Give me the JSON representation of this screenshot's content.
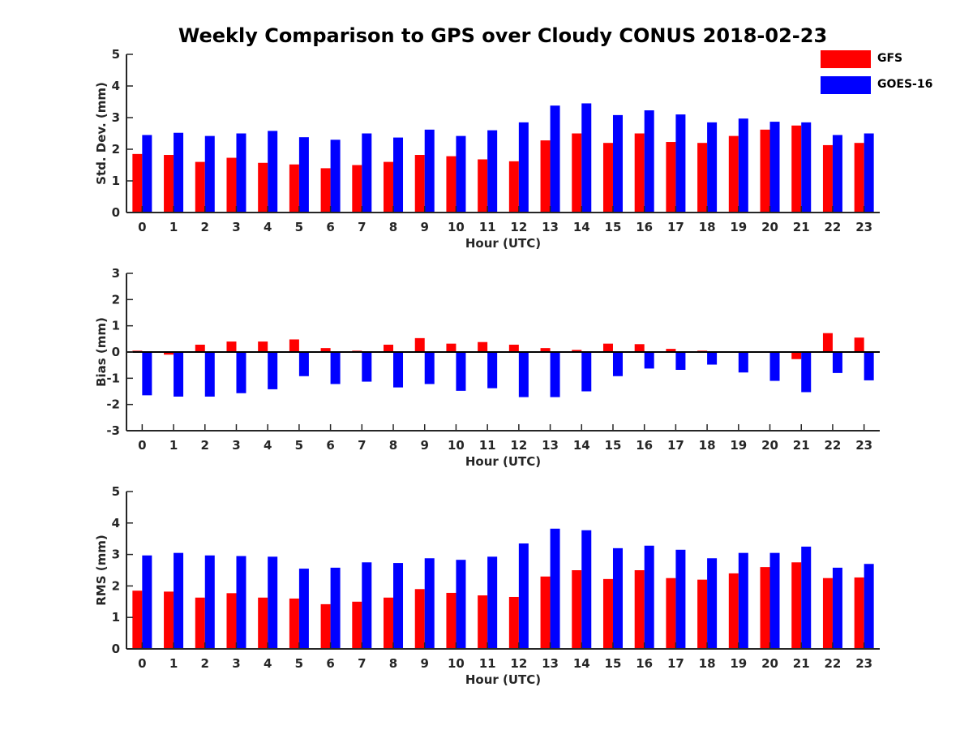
{
  "title": "Weekly Comparison to GPS over Cloudy CONUS 2018-02-23",
  "legend": {
    "placement": "top-right",
    "items": [
      {
        "label": "GFS",
        "color": "#ff0000"
      },
      {
        "label": "GOES-16",
        "color": "#0000ff"
      }
    ]
  },
  "chart_data": [
    {
      "type": "bar",
      "xlabel": "Hour (UTC)",
      "ylabel": "Std. Dev. (mm)",
      "ylim": [
        0,
        5
      ],
      "yticks": [
        0,
        1,
        2,
        3,
        4,
        5
      ],
      "categories": [
        "0",
        "1",
        "2",
        "3",
        "4",
        "5",
        "6",
        "7",
        "8",
        "9",
        "10",
        "11",
        "12",
        "13",
        "14",
        "15",
        "16",
        "17",
        "18",
        "19",
        "20",
        "21",
        "22",
        "23"
      ],
      "series": [
        {
          "name": "GFS",
          "color": "#ff0000",
          "values": [
            1.85,
            1.82,
            1.6,
            1.73,
            1.57,
            1.52,
            1.4,
            1.5,
            1.6,
            1.82,
            1.78,
            1.68,
            1.62,
            2.28,
            2.5,
            2.2,
            2.5,
            2.23,
            2.2,
            2.42,
            2.62,
            2.75,
            2.13,
            2.2
          ]
        },
        {
          "name": "GOES-16",
          "color": "#0000ff",
          "values": [
            2.45,
            2.52,
            2.42,
            2.5,
            2.58,
            2.38,
            2.3,
            2.5,
            2.37,
            2.62,
            2.42,
            2.6,
            2.85,
            3.38,
            3.45,
            3.08,
            3.23,
            3.1,
            2.85,
            2.97,
            2.87,
            2.85,
            2.45,
            2.5
          ]
        }
      ],
      "grid": false
    },
    {
      "type": "bar",
      "xlabel": "Hour (UTC)",
      "ylabel": "Bias (mm)",
      "ylim": [
        -3,
        3
      ],
      "yticks": [
        -3,
        -2,
        -1,
        0,
        1,
        2,
        3
      ],
      "categories": [
        "0",
        "1",
        "2",
        "3",
        "4",
        "5",
        "6",
        "7",
        "8",
        "9",
        "10",
        "11",
        "12",
        "13",
        "14",
        "15",
        "16",
        "17",
        "18",
        "19",
        "20",
        "21",
        "22",
        "23"
      ],
      "series": [
        {
          "name": "GFS",
          "color": "#ff0000",
          "values": [
            0.05,
            -0.1,
            0.28,
            0.4,
            0.4,
            0.48,
            0.15,
            0.05,
            0.28,
            0.53,
            0.32,
            0.38,
            0.28,
            0.15,
            0.08,
            0.32,
            0.3,
            0.12,
            0.05,
            0.0,
            0.03,
            -0.27,
            0.72,
            0.55
          ]
        },
        {
          "name": "GOES-16",
          "color": "#0000ff",
          "values": [
            -1.65,
            -1.7,
            -1.7,
            -1.57,
            -1.42,
            -0.92,
            -1.22,
            -1.13,
            -1.35,
            -1.22,
            -1.48,
            -1.38,
            -1.72,
            -1.72,
            -1.5,
            -0.92,
            -0.63,
            -0.68,
            -0.48,
            -0.78,
            -1.1,
            -1.53,
            -0.8,
            -1.08
          ]
        }
      ],
      "grid": false
    },
    {
      "type": "bar",
      "xlabel": "Hour (UTC)",
      "ylabel": "RMS (mm)",
      "ylim": [
        0,
        5
      ],
      "yticks": [
        0,
        1,
        2,
        3,
        4,
        5
      ],
      "categories": [
        "0",
        "1",
        "2",
        "3",
        "4",
        "5",
        "6",
        "7",
        "8",
        "9",
        "10",
        "11",
        "12",
        "13",
        "14",
        "15",
        "16",
        "17",
        "18",
        "19",
        "20",
        "21",
        "22",
        "23"
      ],
      "series": [
        {
          "name": "GFS",
          "color": "#ff0000",
          "values": [
            1.85,
            1.82,
            1.63,
            1.77,
            1.63,
            1.6,
            1.42,
            1.5,
            1.63,
            1.9,
            1.78,
            1.7,
            1.65,
            2.3,
            2.5,
            2.22,
            2.5,
            2.25,
            2.2,
            2.4,
            2.6,
            2.75,
            2.25,
            2.27
          ]
        },
        {
          "name": "GOES-16",
          "color": "#0000ff",
          "values": [
            2.97,
            3.05,
            2.97,
            2.95,
            2.93,
            2.55,
            2.58,
            2.75,
            2.73,
            2.88,
            2.83,
            2.93,
            3.35,
            3.82,
            3.77,
            3.2,
            3.28,
            3.15,
            2.88,
            3.05,
            3.05,
            3.25,
            2.58,
            2.7
          ]
        }
      ],
      "grid": false
    }
  ]
}
